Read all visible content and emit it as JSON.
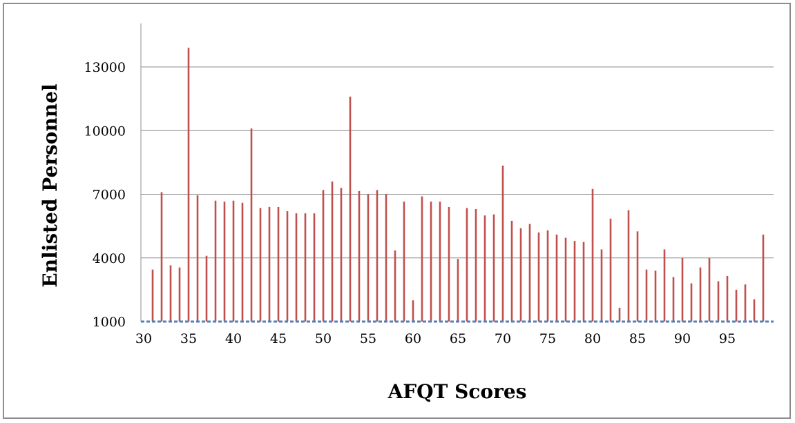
{
  "chart_data": {
    "type": "bar",
    "title": "",
    "xlabel": "AFQT Scores",
    "ylabel": "Enlisted Personnel",
    "ylim": [
      1000,
      14000
    ],
    "yticks": [
      1000,
      4000,
      7000,
      10000,
      13000
    ],
    "xticks": [
      30,
      35,
      40,
      45,
      50,
      55,
      60,
      65,
      70,
      75,
      80,
      85,
      90,
      95
    ],
    "grid": true,
    "legend": "none",
    "bar_color": "#c0504d",
    "baseline_color": "#4f81bd",
    "gridline_color": "#8c8c8c",
    "x": [
      31,
      32,
      33,
      34,
      35,
      36,
      37,
      38,
      39,
      40,
      41,
      42,
      43,
      44,
      45,
      46,
      47,
      48,
      49,
      50,
      51,
      52,
      53,
      54,
      55,
      56,
      57,
      58,
      59,
      60,
      61,
      62,
      63,
      64,
      65,
      66,
      67,
      68,
      69,
      70,
      71,
      72,
      73,
      74,
      75,
      76,
      77,
      78,
      79,
      80,
      81,
      82,
      83,
      84,
      85,
      86,
      87,
      88,
      89,
      90,
      91,
      92,
      93,
      94,
      95,
      96,
      97,
      98,
      99
    ],
    "values": [
      3450,
      7100,
      3650,
      3550,
      13900,
      6950,
      4100,
      6700,
      6650,
      6700,
      6600,
      10100,
      6350,
      6400,
      6400,
      6200,
      6100,
      6100,
      6100,
      7200,
      7600,
      7300,
      11600,
      7150,
      7000,
      7200,
      7000,
      4350,
      6650,
      2000,
      6900,
      6650,
      6650,
      6400,
      3950,
      6350,
      6300,
      6000,
      6050,
      8350,
      5750,
      5400,
      5600,
      5200,
      5300,
      5100,
      4950,
      4800,
      4750,
      7250,
      4400,
      5850,
      1650,
      6250,
      5250,
      3450,
      3400,
      4400,
      3100,
      4000,
      2800,
      3550,
      4000,
      2900,
      3150,
      2500,
      2750,
      2050,
      5100
    ]
  }
}
